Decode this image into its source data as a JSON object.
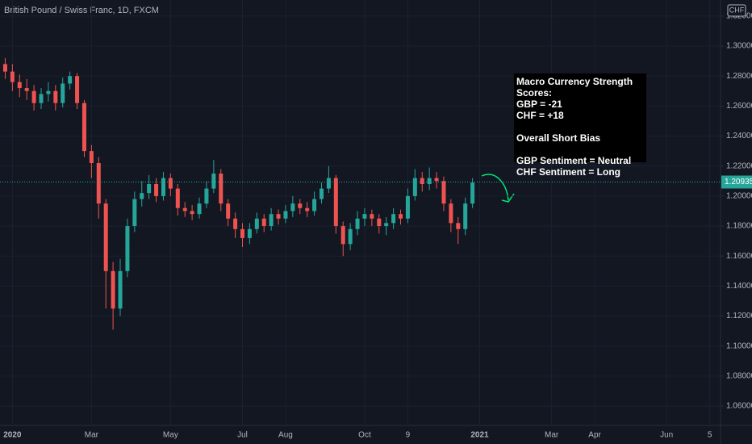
{
  "chart_data": {
    "type": "candlestick",
    "title": "British Pound / Swiss Franc, 1D, FXCM",
    "currency": "CHF",
    "categories": [
      null,
      "2020",
      null,
      null,
      null,
      null,
      null,
      null,
      null,
      null,
      null,
      null,
      "Mar",
      null,
      null,
      null,
      null,
      null,
      null,
      null,
      null,
      null,
      null,
      "May",
      null,
      null,
      null,
      null,
      null,
      null,
      null,
      null,
      null,
      "Jul",
      null,
      null,
      null,
      null,
      null,
      "Aug",
      null,
      null,
      null,
      null,
      null,
      null,
      null,
      null,
      null,
      null,
      "Oct",
      null,
      null,
      null,
      null,
      null,
      "9",
      null,
      null,
      null,
      null,
      null,
      null,
      null,
      null,
      null,
      "2021",
      null,
      null,
      null,
      null,
      null,
      null,
      null,
      null,
      null,
      "Mar",
      null,
      null,
      null,
      null,
      null,
      "Apr",
      null,
      null,
      null,
      null,
      null,
      null,
      null,
      null,
      null,
      "Jun",
      null,
      null,
      null,
      null,
      null,
      "5",
      null
    ],
    "open": [
      1.288,
      1.283,
      1.276,
      1.272,
      1.27,
      1.262,
      1.268,
      1.27,
      1.262,
      1.275,
      1.28,
      1.262,
      1.23,
      1.222,
      1.195,
      1.15,
      1.125,
      1.15,
      1.18,
      1.198,
      1.202,
      1.208,
      1.2,
      1.212,
      1.205,
      1.192,
      1.19,
      1.188,
      1.195,
      1.205,
      1.215,
      1.195,
      1.185,
      1.178,
      1.172,
      1.178,
      1.185,
      1.18,
      1.188,
      1.185,
      1.19,
      1.195,
      1.192,
      1.19,
      1.198,
      1.205,
      1.212,
      1.18,
      1.168,
      1.178,
      1.185,
      1.188,
      1.185,
      1.18,
      1.182,
      1.188,
      1.185,
      1.2,
      1.212,
      1.208,
      1.212,
      1.21,
      1.195,
      1.182,
      1.178,
      1.195,
      null,
      null,
      null,
      null,
      null,
      null,
      null,
      null,
      null,
      null,
      null,
      null,
      null,
      null,
      null,
      null,
      null,
      null,
      null,
      null,
      null,
      null,
      null,
      null,
      null,
      null,
      null,
      null,
      null,
      null,
      null,
      null,
      null,
      null
    ],
    "high": [
      1.292,
      1.288,
      1.281,
      1.278,
      1.274,
      1.272,
      1.276,
      1.274,
      1.279,
      1.283,
      1.282,
      1.264,
      1.234,
      1.226,
      1.198,
      1.156,
      1.158,
      1.185,
      1.203,
      1.21,
      1.214,
      1.212,
      1.216,
      1.215,
      1.208,
      1.196,
      1.194,
      1.199,
      1.21,
      1.224,
      1.218,
      1.198,
      1.189,
      1.182,
      1.182,
      1.189,
      1.188,
      1.192,
      1.191,
      1.194,
      1.2,
      1.198,
      1.196,
      1.203,
      1.209,
      1.22,
      1.214,
      1.183,
      1.182,
      1.19,
      1.192,
      1.191,
      1.188,
      1.186,
      1.192,
      1.191,
      1.205,
      1.218,
      1.216,
      1.219,
      1.216,
      1.213,
      1.198,
      1.186,
      1.199,
      1.212,
      null,
      null,
      null,
      null,
      null,
      null,
      null,
      null,
      null,
      null,
      null,
      null,
      null,
      null,
      null,
      null,
      null,
      null,
      null,
      null,
      null,
      null,
      null,
      null,
      null,
      null,
      null,
      null,
      null,
      null,
      null,
      null,
      null,
      null
    ],
    "low": [
      1.278,
      1.27,
      1.266,
      1.264,
      1.257,
      1.258,
      1.263,
      1.257,
      1.259,
      1.271,
      1.258,
      1.226,
      1.212,
      1.185,
      1.125,
      1.111,
      1.12,
      1.146,
      1.176,
      1.193,
      1.198,
      1.196,
      1.197,
      1.2,
      1.187,
      1.186,
      1.184,
      1.185,
      1.192,
      1.202,
      1.19,
      1.18,
      1.172,
      1.166,
      1.168,
      1.175,
      1.176,
      1.177,
      1.181,
      1.182,
      1.186,
      1.188,
      1.186,
      1.187,
      1.195,
      1.202,
      1.175,
      1.16,
      1.164,
      1.174,
      1.18,
      1.18,
      1.175,
      1.174,
      1.178,
      1.181,
      1.182,
      1.197,
      1.203,
      1.204,
      1.205,
      1.19,
      1.176,
      1.168,
      1.174,
      1.192,
      null,
      null,
      null,
      null,
      null,
      null,
      null,
      null,
      null,
      null,
      null,
      null,
      null,
      null,
      null,
      null,
      null,
      null,
      null,
      null,
      null,
      null,
      null,
      null,
      null,
      null,
      null,
      null,
      null,
      null,
      null,
      null,
      null,
      null
    ],
    "close": [
      1.283,
      1.276,
      1.272,
      1.27,
      1.262,
      1.268,
      1.27,
      1.262,
      1.275,
      1.28,
      1.262,
      1.23,
      1.222,
      1.195,
      1.15,
      1.125,
      1.15,
      1.18,
      1.198,
      1.202,
      1.208,
      1.2,
      1.212,
      1.205,
      1.192,
      1.19,
      1.188,
      1.195,
      1.205,
      1.215,
      1.195,
      1.185,
      1.178,
      1.172,
      1.178,
      1.185,
      1.18,
      1.188,
      1.185,
      1.19,
      1.195,
      1.192,
      1.19,
      1.198,
      1.205,
      1.212,
      1.18,
      1.168,
      1.178,
      1.185,
      1.188,
      1.185,
      1.18,
      1.182,
      1.188,
      1.185,
      1.2,
      1.212,
      1.208,
      1.212,
      1.21,
      1.195,
      1.182,
      1.178,
      1.195,
      1.209,
      null,
      null,
      null,
      null,
      null,
      null,
      null,
      null,
      null,
      null,
      null,
      null,
      null,
      null,
      null,
      null,
      null,
      null,
      null,
      null,
      null,
      null,
      null,
      null,
      null,
      null,
      null,
      null,
      null,
      null,
      null,
      null,
      null,
      null
    ],
    "up_color": "#26a69a",
    "down_color": "#ef5350",
    "last_price": 1.20935,
    "ylim": [
      1.0471,
      1.3307
    ],
    "yticks": [
      {
        "value": 1.06,
        "label": "1.06000"
      },
      {
        "value": 1.08,
        "label": "1.08000"
      },
      {
        "value": 1.1,
        "label": "1.10000"
      },
      {
        "value": 1.12,
        "label": "1.12000"
      },
      {
        "value": 1.14,
        "label": "1.14000"
      },
      {
        "value": 1.16,
        "label": "1.16000"
      },
      {
        "value": 1.18,
        "label": "1.18000"
      },
      {
        "value": 1.2,
        "label": "1.20000"
      },
      {
        "value": 1.22,
        "label": "1.22000"
      },
      {
        "value": 1.24,
        "label": "1.24000"
      },
      {
        "value": 1.26,
        "label": "1.26000"
      },
      {
        "value": 1.28,
        "label": "1.28000"
      },
      {
        "value": 1.3,
        "label": "1.30000"
      },
      {
        "value": 1.32,
        "label": "1.32000"
      }
    ],
    "annotation": [
      [
        "Macro Currency Strength Scores:",
        "GBP = -21",
        "CHF = +18"
      ],
      [
        "Overall Short Bias"
      ],
      [
        "GBP Sentiment = Neutral",
        "CHF Sentiment = Long"
      ]
    ]
  }
}
